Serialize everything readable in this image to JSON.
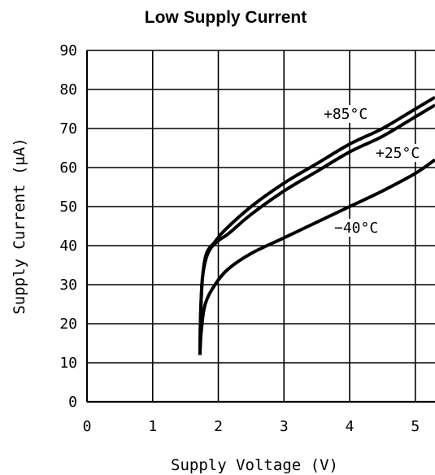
{
  "chart_data": {
    "type": "line",
    "title": "Low Supply Current",
    "xlabel": "Supply Voltage (V)",
    "ylabel": "Supply Current (μA)",
    "xlim": [
      0,
      5.3
    ],
    "ylim": [
      0,
      90
    ],
    "x_ticks": [
      0,
      1,
      2,
      3,
      4,
      5
    ],
    "y_ticks": [
      0,
      10,
      20,
      30,
      40,
      50,
      60,
      70,
      80,
      90
    ],
    "grid": true,
    "colors": {
      "line": "#000000",
      "grid": "#000000",
      "background": "#ffffff"
    },
    "series": [
      {
        "name": "+85°C",
        "points": [
          [
            1.72,
            12
          ],
          [
            1.73,
            22
          ],
          [
            1.76,
            32
          ],
          [
            1.82,
            38
          ],
          [
            1.95,
            41
          ],
          [
            2.1,
            44
          ],
          [
            2.5,
            50
          ],
          [
            3,
            56
          ],
          [
            3.5,
            61
          ],
          [
            4,
            66
          ],
          [
            4.5,
            70
          ],
          [
            5,
            75
          ],
          [
            5.3,
            78
          ]
        ]
      },
      {
        "name": "+25°C",
        "points": [
          [
            1.72,
            12
          ],
          [
            1.73,
            22
          ],
          [
            1.76,
            32
          ],
          [
            1.84,
            38
          ],
          [
            1.98,
            41
          ],
          [
            2.15,
            43
          ],
          [
            2.5,
            48
          ],
          [
            3,
            54
          ],
          [
            3.5,
            59
          ],
          [
            4,
            64
          ],
          [
            4.5,
            68
          ],
          [
            5,
            73
          ],
          [
            5.3,
            76
          ]
        ]
      },
      {
        "name": "−40°C",
        "points": [
          [
            1.72,
            12
          ],
          [
            1.74,
            18
          ],
          [
            1.8,
            25
          ],
          [
            1.95,
            30
          ],
          [
            2.15,
            34
          ],
          [
            2.5,
            38
          ],
          [
            3,
            42
          ],
          [
            3.5,
            46
          ],
          [
            4,
            50
          ],
          [
            4.5,
            54
          ],
          [
            5,
            58.5
          ],
          [
            5.3,
            62
          ]
        ]
      }
    ]
  }
}
